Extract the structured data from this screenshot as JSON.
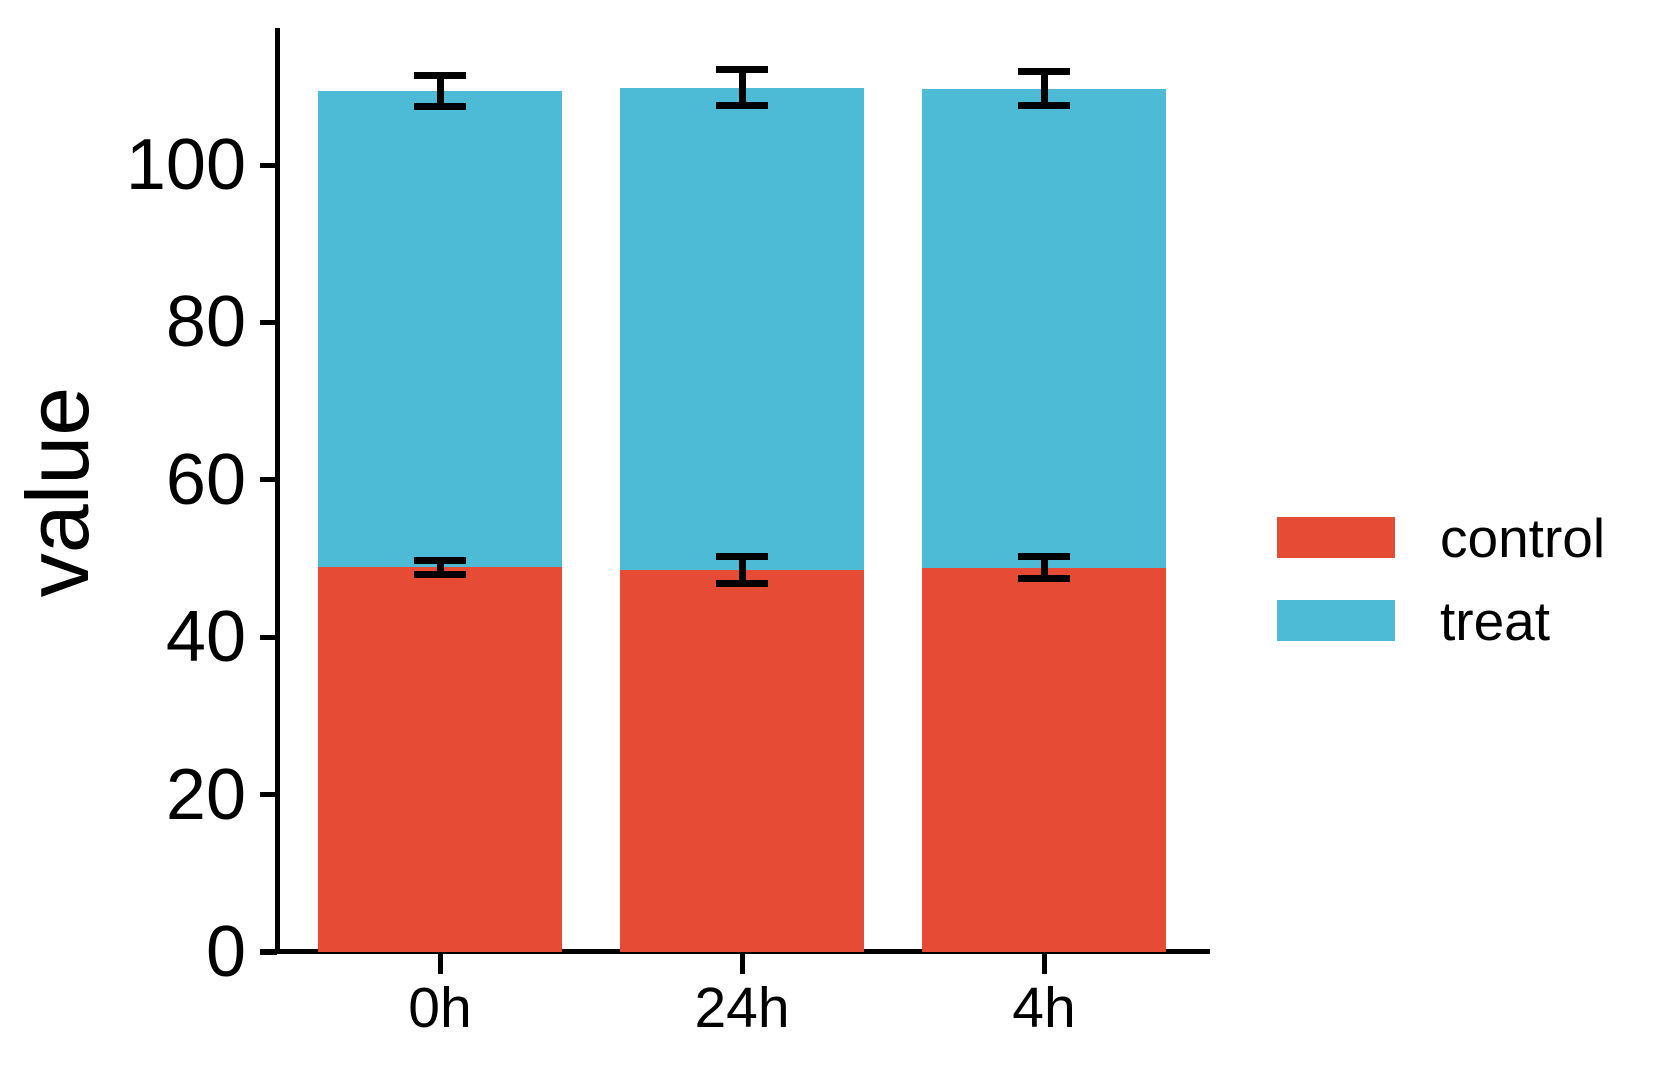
{
  "chart_data": {
    "type": "bar",
    "stacked": true,
    "title": "",
    "xlabel": "",
    "ylabel": "value",
    "categories": [
      "0h",
      "24h",
      "4h"
    ],
    "series": [
      {
        "name": "control",
        "color": "#E64B35",
        "values": [
          48.9,
          48.5,
          48.8
        ]
      },
      {
        "name": "treat",
        "color": "#4DBBD5",
        "values": [
          60.5,
          61.3,
          60.9
        ]
      }
    ],
    "stack_totals": [
      109.4,
      109.8,
      109.7
    ],
    "error_bars": [
      {
        "at": "control-top",
        "centers": [
          48.9,
          48.5,
          48.8
        ],
        "half_ranges": [
          0.9,
          1.7,
          1.4
        ],
        "color": "#000000"
      },
      {
        "at": "stack-top",
        "centers": [
          109.4,
          109.8,
          109.7
        ],
        "half_ranges": [
          2.0,
          2.3,
          2.2
        ],
        "color": "#000000"
      }
    ],
    "yticks": [
      0,
      20,
      40,
      60,
      80,
      100
    ],
    "ylim": [
      0,
      117.5
    ],
    "grid": false,
    "legend_position": "right",
    "axis_color": "#000000",
    "background_color": "#FFFFFF"
  },
  "legend": {
    "items": [
      {
        "label": "control",
        "color": "#E64B35"
      },
      {
        "label": "treat",
        "color": "#4DBBD5"
      }
    ]
  }
}
